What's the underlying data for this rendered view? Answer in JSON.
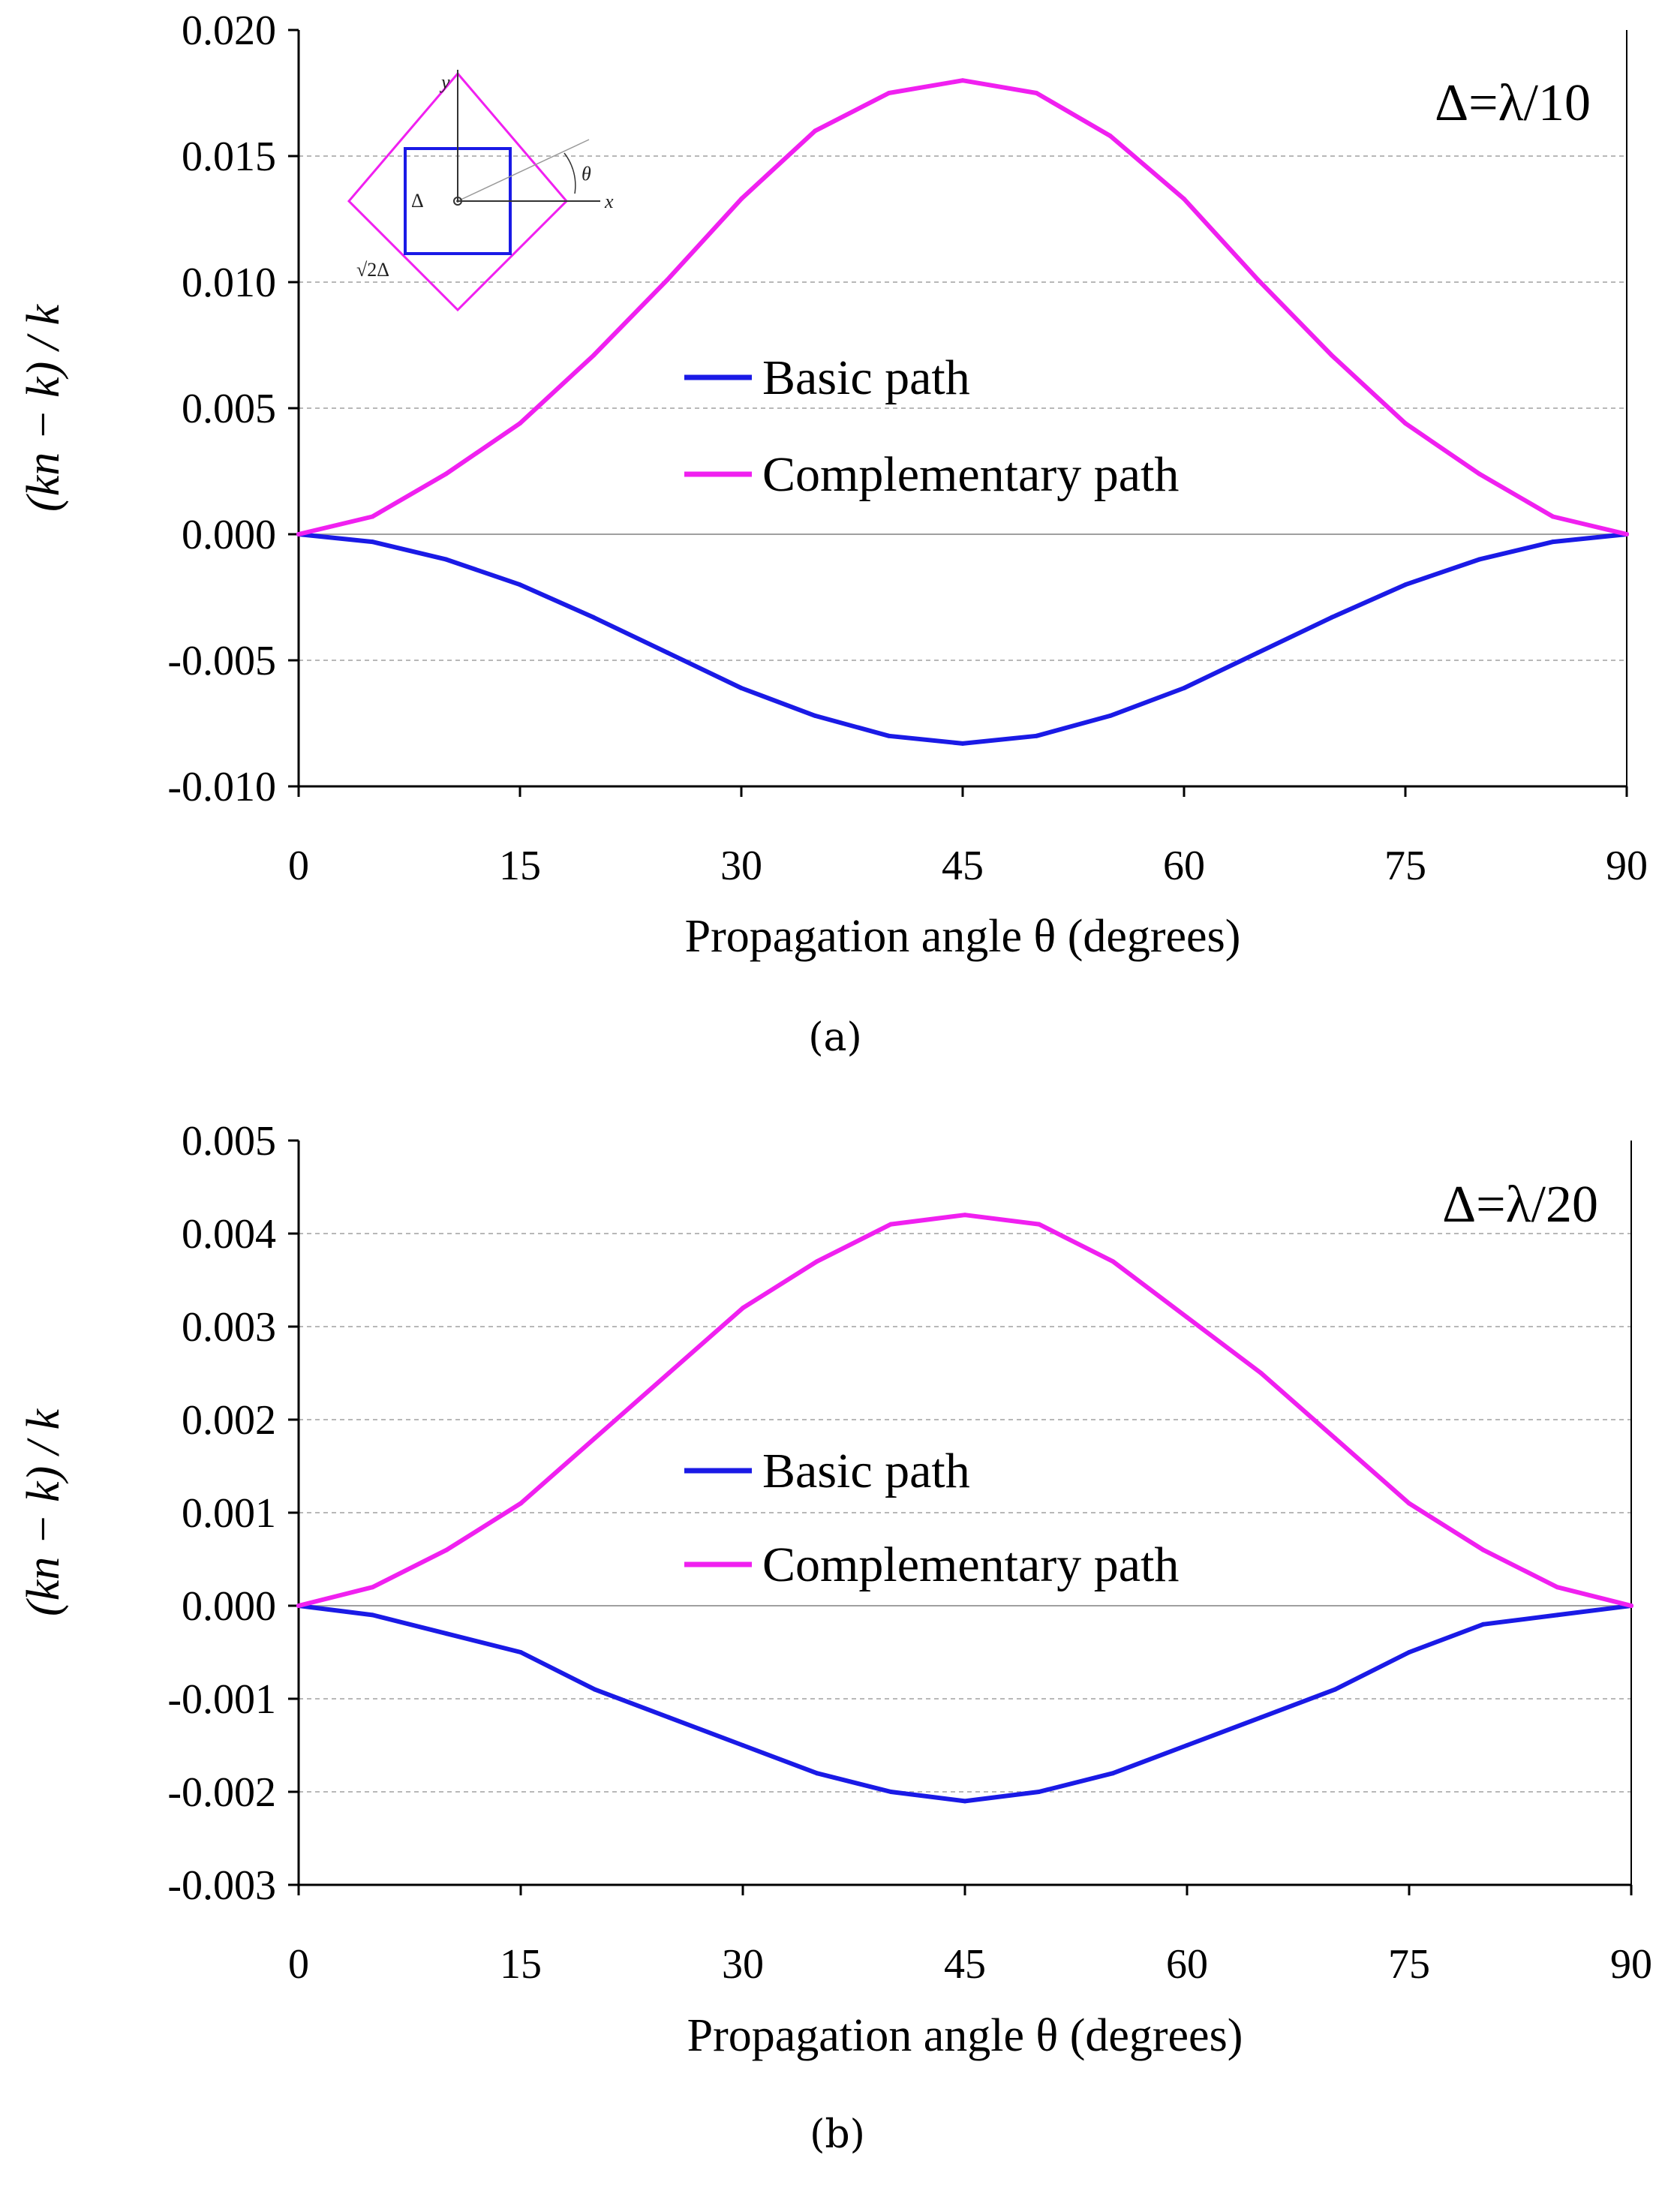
{
  "chart_data": [
    {
      "type": "line",
      "panel": "(a)",
      "title": "",
      "annotation": "Δ=λ/10",
      "xlabel": "Propagation angle θ (degrees)",
      "ylabel": "(kn − k) / k",
      "xlim": [
        0,
        90
      ],
      "ylim": [
        -0.01,
        0.02
      ],
      "xticks": [
        0,
        15,
        30,
        45,
        60,
        75,
        90
      ],
      "xtick_labels": [
        "0",
        "15",
        "30",
        "45",
        "60",
        "75",
        "90"
      ],
      "yticks": [
        -0.01,
        -0.005,
        0.0,
        0.005,
        0.01,
        0.015,
        0.02
      ],
      "ytick_labels": [
        "-0.010",
        "-0.005",
        "0.000",
        "0.005",
        "0.010",
        "0.015",
        "0.020"
      ],
      "grid": "horizontal dashed",
      "legend_position": "center",
      "x": [
        0,
        5,
        10,
        15,
        20,
        25,
        30,
        35,
        40,
        45,
        50,
        55,
        60,
        65,
        70,
        75,
        80,
        85,
        90
      ],
      "series": [
        {
          "name": "Basic path",
          "color": "#1a1ae6",
          "values": [
            0.0,
            -0.0003,
            -0.001,
            -0.002,
            -0.0033,
            -0.0047,
            -0.0061,
            -0.0072,
            -0.008,
            -0.0083,
            -0.008,
            -0.0072,
            -0.0061,
            -0.0047,
            -0.0033,
            -0.002,
            -0.001,
            -0.0003,
            0.0
          ]
        },
        {
          "name": "Complementary path",
          "color": "#f020f0",
          "values": [
            0.0,
            0.0007,
            0.0024,
            0.0044,
            0.0071,
            0.0101,
            0.0133,
            0.016,
            0.0175,
            0.018,
            0.0175,
            0.0158,
            0.0133,
            0.0101,
            0.0071,
            0.0044,
            0.0024,
            0.0007,
            0.0
          ]
        }
      ],
      "inset": {
        "labels": {
          "y": "y",
          "x": "x",
          "theta": "θ",
          "delta": "Δ",
          "sqrt2delta": "√2Δ"
        },
        "square_color": "#1a1ae6",
        "diamond_color": "#f020f0"
      },
      "caption": "(a)"
    },
    {
      "type": "line",
      "panel": "(b)",
      "title": "",
      "annotation": "Δ=λ/20",
      "xlabel": "Propagation angle θ (degrees)",
      "ylabel": "(kn − k) / k",
      "xlim": [
        0,
        90
      ],
      "ylim": [
        -0.003,
        0.005
      ],
      "xticks": [
        0,
        15,
        30,
        45,
        60,
        75,
        90
      ],
      "xtick_labels": [
        "0",
        "15",
        "30",
        "45",
        "60",
        "75",
        "90"
      ],
      "yticks": [
        -0.003,
        -0.002,
        -0.001,
        0.0,
        0.001,
        0.002,
        0.003,
        0.004,
        0.005
      ],
      "ytick_labels": [
        "-0.003",
        "-0.002",
        "-0.001",
        "0.000",
        "0.001",
        "0.002",
        "0.003",
        "0.004",
        "0.005"
      ],
      "grid": "horizontal dashed",
      "legend_position": "center",
      "x": [
        0,
        5,
        10,
        15,
        20,
        25,
        30,
        35,
        40,
        45,
        50,
        55,
        60,
        65,
        70,
        75,
        80,
        85,
        90
      ],
      "series": [
        {
          "name": "Basic path",
          "color": "#1a1ae6",
          "values": [
            0.0,
            -0.0001,
            -0.0003,
            -0.0005,
            -0.0009,
            -0.0012,
            -0.0015,
            -0.0018,
            -0.002,
            -0.0021,
            -0.002,
            -0.0018,
            -0.0015,
            -0.0012,
            -0.0009,
            -0.0005,
            -0.0002,
            -0.0001,
            0.0
          ]
        },
        {
          "name": "Complementary path",
          "color": "#f020f0",
          "values": [
            0.0,
            0.0002,
            0.0006,
            0.0011,
            0.0018,
            0.0025,
            0.0032,
            0.0037,
            0.0041,
            0.0042,
            0.0041,
            0.0037,
            0.0031,
            0.0025,
            0.0018,
            0.0011,
            0.0006,
            0.0002,
            0.0
          ]
        }
      ],
      "caption": "(b)"
    }
  ]
}
